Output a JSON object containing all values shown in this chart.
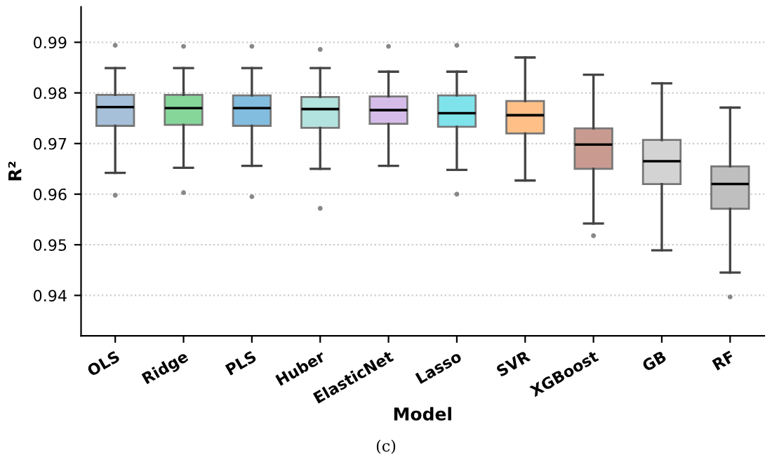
{
  "chart_data": {
    "type": "box",
    "xlabel": "Model",
    "ylabel": "R²",
    "annotations": [
      "(c)"
    ],
    "categories": [
      "OLS",
      "Ridge",
      "PLS",
      "Huber",
      "ElasticNet",
      "Lasso",
      "SVR",
      "XGBoost",
      "GB",
      "RF"
    ],
    "colors": [
      "#a6c0da",
      "#86d69a",
      "#82bde0",
      "#b3e3de",
      "#d6bde9",
      "#7fe3ec",
      "#ffbf86",
      "#c99b90",
      "#d3d3d3",
      "#bfbfbf"
    ],
    "boxes": [
      {
        "low": 0.9642,
        "q1": 0.9735,
        "median": 0.9772,
        "q3": 0.9796,
        "high": 0.9849,
        "outliers": [
          0.9894,
          0.9598
        ]
      },
      {
        "low": 0.9652,
        "q1": 0.9737,
        "median": 0.977,
        "q3": 0.9796,
        "high": 0.9849,
        "outliers": [
          0.9892,
          0.9603
        ]
      },
      {
        "low": 0.9656,
        "q1": 0.9735,
        "median": 0.977,
        "q3": 0.9795,
        "high": 0.9849,
        "outliers": [
          0.9892,
          0.9595
        ]
      },
      {
        "low": 0.965,
        "q1": 0.9731,
        "median": 0.9768,
        "q3": 0.9792,
        "high": 0.9849,
        "outliers": [
          0.9886,
          0.9572
        ]
      },
      {
        "low": 0.9656,
        "q1": 0.9739,
        "median": 0.9766,
        "q3": 0.9793,
        "high": 0.9842,
        "outliers": [
          0.9892
        ]
      },
      {
        "low": 0.9648,
        "q1": 0.9733,
        "median": 0.976,
        "q3": 0.9795,
        "high": 0.9842,
        "outliers": [
          0.9894,
          0.96
        ]
      },
      {
        "low": 0.9627,
        "q1": 0.972,
        "median": 0.9756,
        "q3": 0.9784,
        "high": 0.987
      },
      {
        "low": 0.9542,
        "q1": 0.965,
        "median": 0.9698,
        "q3": 0.973,
        "high": 0.9836,
        "outliers": [
          0.9518
        ]
      },
      {
        "low": 0.9489,
        "q1": 0.962,
        "median": 0.9665,
        "q3": 0.9707,
        "high": 0.9819
      },
      {
        "low": 0.9445,
        "q1": 0.9571,
        "median": 0.962,
        "q3": 0.9655,
        "high": 0.9771,
        "outliers": [
          0.9397
        ]
      }
    ],
    "ylim": [
      0.932,
      0.997
    ],
    "yticks": [
      0.94,
      0.95,
      0.96,
      0.97,
      0.98,
      0.99
    ],
    "grid": "y"
  }
}
